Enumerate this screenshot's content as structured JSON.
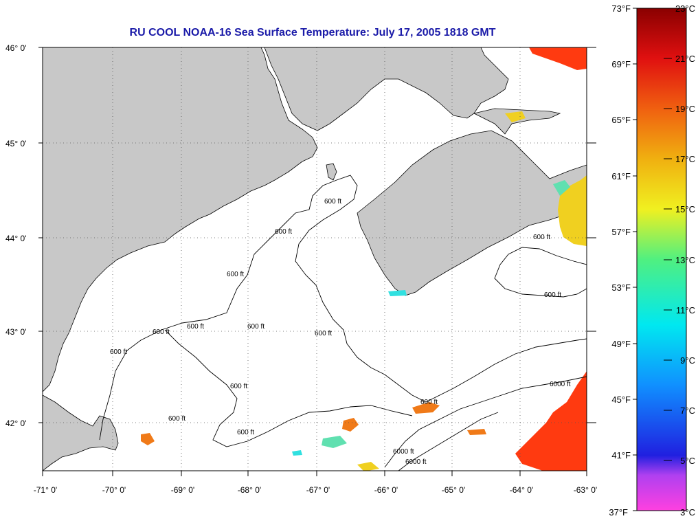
{
  "title": "RU COOL  NOAA-16  Sea Surface Temperature:  July 17, 2005 1818 GMT",
  "lat_labels": [
    "46° 0'",
    "45° 0'",
    "44° 0'",
    "43° 0'",
    "42° 0'"
  ],
  "lon_labels": [
    "-71° 0'",
    "-70° 0'",
    "-69° 0'",
    "-68° 0'",
    "-67° 0'",
    "-66° 0'",
    "-65° 0'",
    "-64° 0'",
    "-63° 0'"
  ],
  "colorbar": {
    "fahrenheit": [
      "73°F",
      "69°F",
      "65°F",
      "61°F",
      "57°F",
      "53°F",
      "49°F",
      "45°F",
      "41°F",
      "37°F"
    ],
    "celsius": [
      "23°C",
      "21°C",
      "19°C",
      "17°C",
      "15°C",
      "13°C",
      "11°C",
      "9°C",
      "7°C",
      "5°C",
      "3°C"
    ]
  },
  "contour_labels": {
    "c600": "600 ft",
    "c6000": "6000 ft"
  },
  "colors": {
    "land": "#c8c8c8",
    "title": "#1a1aa8",
    "warm": "#ff3a10",
    "orange": "#f07a18",
    "yellow": "#f0d020",
    "cyan": "#30e0e0",
    "teal": "#60e0b0"
  }
}
